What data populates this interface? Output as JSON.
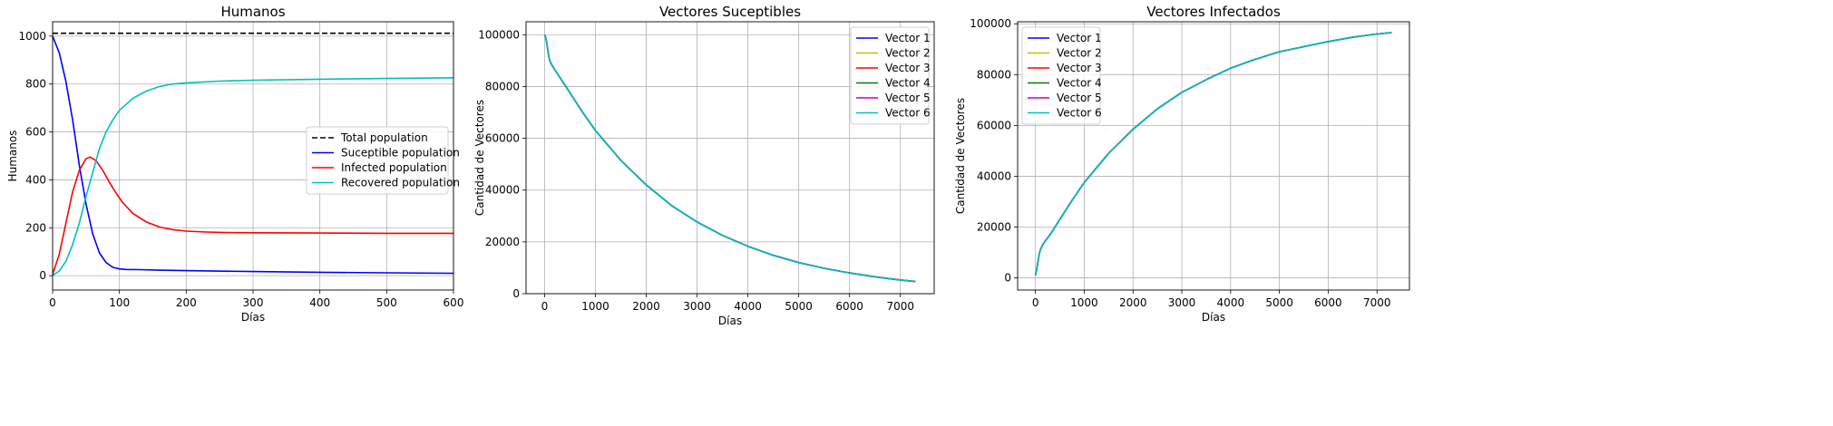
{
  "chart_data": [
    {
      "type": "line",
      "title": "Humanos",
      "xlabel": "Días",
      "ylabel": "Humanos",
      "xlim": [
        0,
        600
      ],
      "ylim": [
        -60,
        1060
      ],
      "xticks": [
        0,
        100,
        200,
        300,
        400,
        500,
        600
      ],
      "yticks": [
        0,
        200,
        400,
        600,
        800,
        1000
      ],
      "grid": true,
      "legend": "center-right",
      "series": [
        {
          "name": "Total population",
          "color": "#000000",
          "dash": true,
          "x": [
            0,
            600
          ],
          "y": [
            1012,
            1012
          ]
        },
        {
          "name": "Suceptible population",
          "color": "#0000ff",
          "x": [
            0,
            10,
            20,
            30,
            40,
            50,
            60,
            70,
            80,
            90,
            100,
            110,
            130,
            160,
            200,
            300,
            400,
            500,
            600
          ],
          "y": [
            1000,
            930,
            810,
            650,
            460,
            300,
            175,
            95,
            55,
            35,
            28,
            26,
            25,
            23,
            21,
            17,
            14,
            12,
            10
          ]
        },
        {
          "name": "Infected population",
          "color": "#ff0000",
          "x": [
            0,
            10,
            20,
            30,
            40,
            50,
            56,
            65,
            75,
            85,
            95,
            105,
            120,
            140,
            160,
            180,
            200,
            230,
            260,
            300,
            400,
            500,
            600
          ],
          "y": [
            5,
            90,
            220,
            350,
            440,
            488,
            495,
            480,
            440,
            390,
            345,
            305,
            260,
            225,
            203,
            192,
            186,
            182,
            180,
            179,
            178,
            177,
            177
          ]
        },
        {
          "name": "Recovered population",
          "color": "#00bfbf",
          "x": [
            0,
            10,
            20,
            30,
            40,
            50,
            60,
            70,
            80,
            90,
            100,
            110,
            120,
            140,
            160,
            180,
            200,
            250,
            300,
            400,
            500,
            600
          ],
          "y": [
            0,
            20,
            60,
            130,
            220,
            330,
            430,
            530,
            600,
            650,
            690,
            715,
            740,
            770,
            790,
            800,
            805,
            812,
            816,
            820,
            823,
            826
          ]
        }
      ]
    },
    {
      "type": "line",
      "title": "Vectores Suceptibles",
      "xlabel": "Días",
      "ylabel": "Cantidad de Vectores",
      "xlim": [
        -365,
        7665
      ],
      "ylim": [
        0,
        105000
      ],
      "xticks": [
        0,
        1000,
        2000,
        3000,
        4000,
        5000,
        6000,
        7000
      ],
      "yticks": [
        0,
        20000,
        40000,
        60000,
        80000,
        100000
      ],
      "grid": true,
      "legend": "top-right",
      "series": [
        {
          "name": "Vector 1",
          "color": "#0000ff"
        },
        {
          "name": "Vector 2",
          "color": "#bfbf00"
        },
        {
          "name": "Vector 3",
          "color": "#ff0000"
        },
        {
          "name": "Vector 4",
          "color": "#008000"
        },
        {
          "name": "Vector 5",
          "color": "#bf00bf"
        },
        {
          "name": "Vector 6",
          "color": "#00bfbf"
        }
      ],
      "shared_curve": {
        "x": [
          0,
          20,
          40,
          60,
          80,
          100,
          150,
          200,
          300,
          500,
          750,
          1000,
          1500,
          2000,
          2500,
          3000,
          3500,
          4000,
          4500,
          5000,
          5500,
          6000,
          6500,
          7000,
          7300
        ],
        "y": [
          100000,
          99000,
          97000,
          94500,
          92000,
          90000,
          88000,
          86500,
          83500,
          77500,
          70000,
          63000,
          51500,
          42000,
          34000,
          27700,
          22500,
          18300,
          14800,
          12000,
          9800,
          8000,
          6500,
          5300,
          4700
        ]
      }
    },
    {
      "type": "line",
      "title": "Vectores Infectados",
      "xlabel": "Días",
      "ylabel": "Cantidad de Vectores",
      "xlim": [
        -365,
        7665
      ],
      "ylim": [
        -4800,
        100800
      ],
      "xticks": [
        0,
        1000,
        2000,
        3000,
        4000,
        5000,
        6000,
        7000
      ],
      "yticks": [
        0,
        20000,
        40000,
        60000,
        80000,
        100000
      ],
      "grid": true,
      "legend": "top-left",
      "series": [
        {
          "name": "Vector 1",
          "color": "#0000ff"
        },
        {
          "name": "Vector 2",
          "color": "#bfbf00"
        },
        {
          "name": "Vector 3",
          "color": "#ff0000"
        },
        {
          "name": "Vector 4",
          "color": "#008000"
        },
        {
          "name": "Vector 5",
          "color": "#bf00bf"
        },
        {
          "name": "Vector 6",
          "color": "#00bfbf"
        }
      ],
      "shared_curve": {
        "x": [
          0,
          20,
          40,
          60,
          80,
          100,
          150,
          200,
          300,
          500,
          750,
          1000,
          1500,
          2000,
          2500,
          3000,
          3500,
          4000,
          4500,
          5000,
          5500,
          6000,
          6500,
          7000,
          7300
        ],
        "y": [
          1000,
          2500,
          5000,
          7500,
          9500,
          11000,
          13000,
          14500,
          17000,
          23000,
          30500,
          37500,
          49000,
          58500,
          66500,
          73000,
          78000,
          82500,
          86000,
          89000,
          91000,
          93000,
          94700,
          96000,
          96500
        ]
      }
    }
  ]
}
